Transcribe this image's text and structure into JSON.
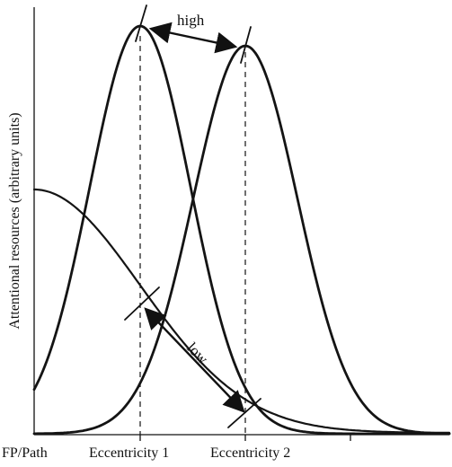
{
  "diagram": {
    "ylabel": "Attentional resources (arbitrary units)",
    "x_labels": [
      "FP/Path",
      "Eccentricity 1",
      "Eccentricity 2"
    ],
    "annotations": {
      "high": "high",
      "low": "low"
    }
  }
}
